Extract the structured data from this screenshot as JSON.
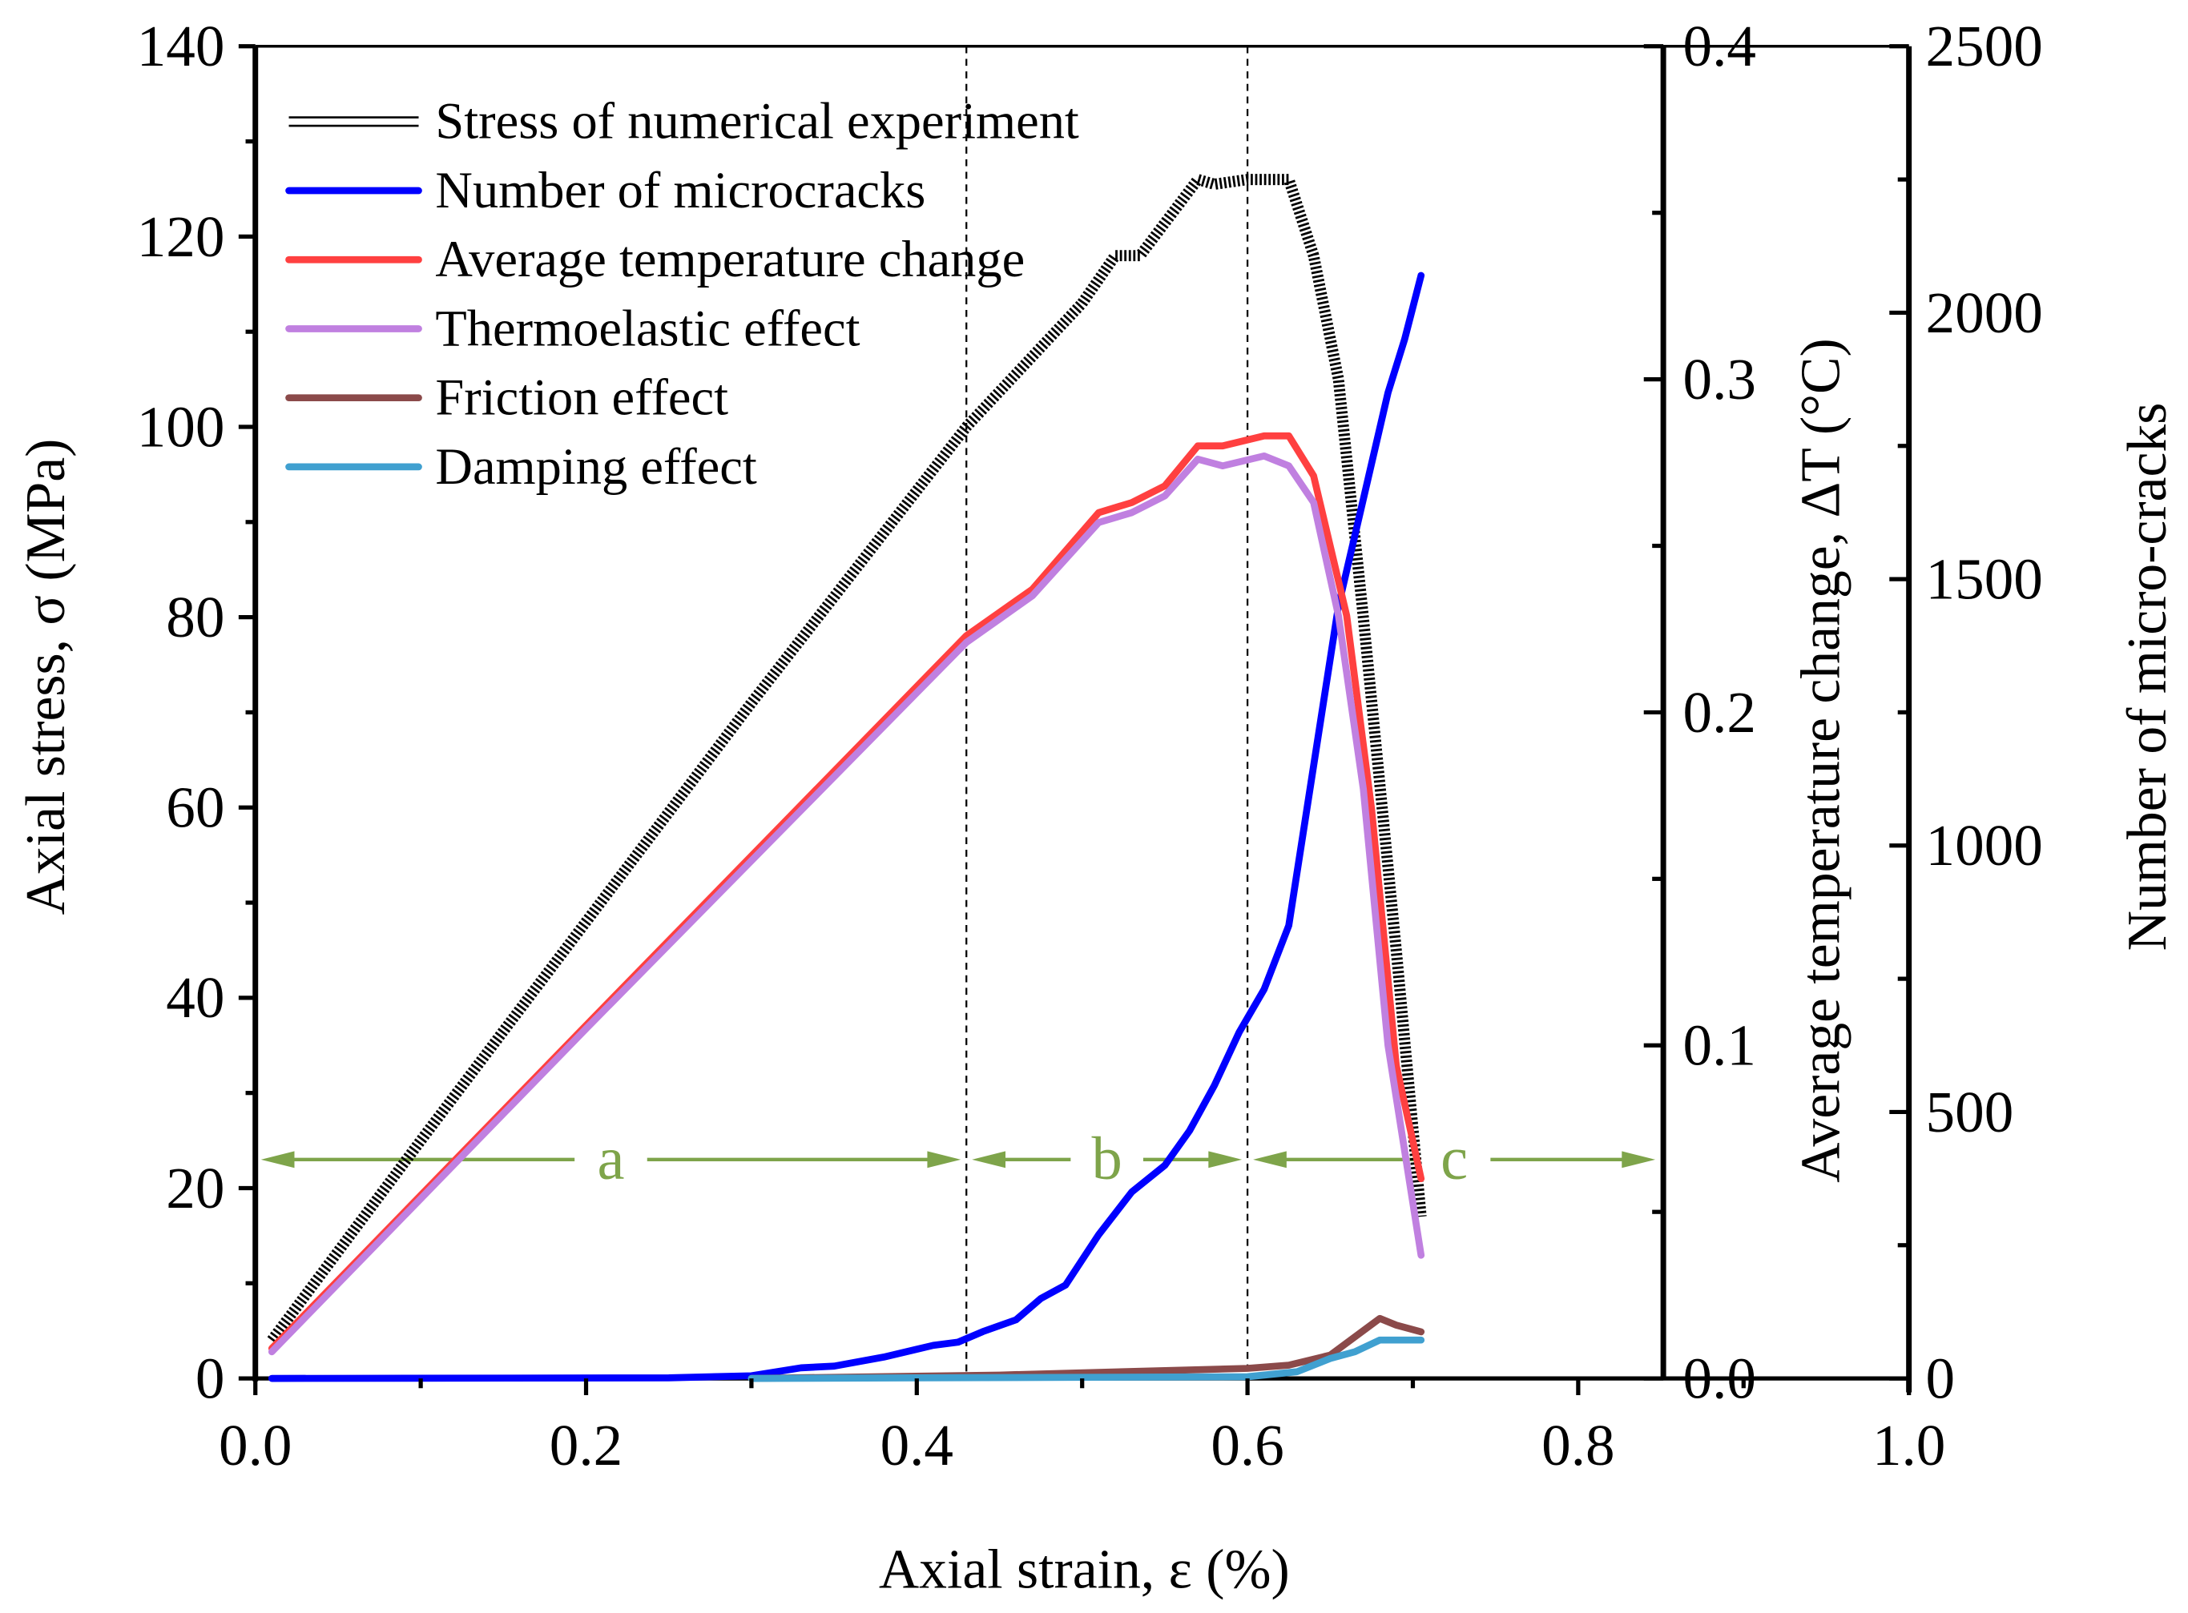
{
  "chart_data": {
    "type": "line",
    "xlabel": "Axial strain, ε (%)",
    "ylabel_left": "Axial stress, σ (MPa)",
    "ylabel_right1": "Average temperature change, ΔT (°C)",
    "ylabel_right2": "Number of micro-cracks",
    "xlim": [
      0,
      1.0
    ],
    "ylim_left": [
      0,
      140
    ],
    "ylim_right1": [
      0,
      0.4
    ],
    "ylim_right2": [
      0,
      2500
    ],
    "x_ticks": [
      "0.0",
      "0.2",
      "0.4",
      "0.6",
      "0.8",
      "1.0"
    ],
    "y_left_ticks": [
      "0",
      "20",
      "40",
      "60",
      "80",
      "100",
      "120",
      "140"
    ],
    "y_right1_ticks": [
      "0.0",
      "0.1",
      "0.2",
      "0.3",
      "0.4"
    ],
    "y_right2_ticks": [
      "0",
      "500",
      "1000",
      "1500",
      "2000",
      "2500"
    ],
    "legend_position": "top-left",
    "series": [
      {
        "name": "Stress of numerical experiment",
        "axis": "left",
        "color": "#000000",
        "style": "hatched",
        "x": [
          0.01,
          0.1,
          0.2,
          0.3,
          0.43,
          0.5,
          0.52,
          0.535,
          0.57,
          0.58,
          0.6,
          0.625,
          0.64,
          0.655,
          0.67,
          0.69,
          0.705
        ],
        "y": [
          4,
          25,
          48,
          71,
          100,
          113,
          118,
          118,
          126,
          125.5,
          126,
          126,
          118,
          105,
          80,
          45,
          17
        ]
      },
      {
        "name": "Number of microcracks",
        "axis": "right2",
        "color": "#0000ff",
        "x": [
          0.01,
          0.25,
          0.3,
          0.33,
          0.35,
          0.38,
          0.41,
          0.425,
          0.44,
          0.46,
          0.475,
          0.49,
          0.51,
          0.53,
          0.55,
          0.565,
          0.58,
          0.595,
          0.61,
          0.625,
          0.64,
          0.655,
          0.67,
          0.685,
          0.695,
          0.705
        ],
        "y": [
          0,
          1,
          5,
          20,
          23,
          40,
          62,
          68,
          88,
          110,
          150,
          175,
          270,
          350,
          400,
          465,
          550,
          650,
          730,
          850,
          1150,
          1450,
          1650,
          1850,
          1950,
          2070
        ]
      },
      {
        "name": "Average temperature change",
        "axis": "right1",
        "color": "#ff4040",
        "x": [
          0.01,
          0.2,
          0.43,
          0.47,
          0.51,
          0.53,
          0.55,
          0.57,
          0.585,
          0.61,
          0.625,
          0.64,
          0.66,
          0.675,
          0.69,
          0.705
        ],
        "y": [
          0.009,
          0.106,
          0.223,
          0.237,
          0.26,
          0.263,
          0.268,
          0.28,
          0.28,
          0.283,
          0.283,
          0.271,
          0.229,
          0.171,
          0.094,
          0.06
        ]
      },
      {
        "name": "Thermoelastic effect",
        "axis": "right1",
        "color": "#c080e0",
        "x": [
          0.01,
          0.2,
          0.43,
          0.47,
          0.51,
          0.53,
          0.55,
          0.57,
          0.585,
          0.61,
          0.625,
          0.64,
          0.655,
          0.67,
          0.685,
          0.705
        ],
        "y": [
          0.008,
          0.105,
          0.221,
          0.235,
          0.257,
          0.26,
          0.265,
          0.276,
          0.274,
          0.277,
          0.274,
          0.263,
          0.229,
          0.177,
          0.1,
          0.037
        ]
      },
      {
        "name": "Friction effect",
        "axis": "right1",
        "color": "#8b4a4a",
        "x": [
          0.3,
          0.45,
          0.6,
          0.625,
          0.65,
          0.68,
          0.69,
          0.705
        ],
        "y": [
          0.0,
          0.001,
          0.003,
          0.004,
          0.007,
          0.018,
          0.016,
          0.014
        ]
      },
      {
        "name": "Damping effect",
        "axis": "right1",
        "color": "#40a0d0",
        "x": [
          0.3,
          0.6,
          0.63,
          0.65,
          0.665,
          0.68,
          0.705
        ],
        "y": [
          0.0,
          0.0005,
          0.002,
          0.006,
          0.008,
          0.0115,
          0.0115
        ]
      }
    ],
    "stage_boundaries": [
      0.43,
      0.6
    ],
    "stages": [
      {
        "label": "a",
        "from": 0.0,
        "to": 0.43
      },
      {
        "label": "b",
        "from": 0.43,
        "to": 0.6
      },
      {
        "label": "c",
        "from": 0.6,
        "to": 0.85
      }
    ],
    "stage_arrow_level_mpa": 23,
    "stage_color": "#7ea44a"
  }
}
